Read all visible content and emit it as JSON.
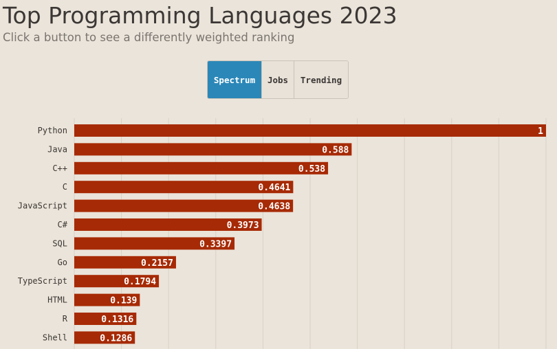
{
  "header": {
    "title": "Top Programming Languages 2023",
    "subtitle": "Click a button to see a differently weighted ranking"
  },
  "buttons": [
    {
      "label": "Spectrum",
      "active": true
    },
    {
      "label": "Jobs",
      "active": false
    },
    {
      "label": "Trending",
      "active": false
    }
  ],
  "colors": {
    "bar": "#a62a05",
    "active_button": "#2b87b8",
    "background": "#ebe4da",
    "grid": "#d9d1c6"
  },
  "chart_data": {
    "type": "bar",
    "orientation": "horizontal",
    "categories": [
      "Python",
      "Java",
      "C++",
      "C",
      "JavaScript",
      "C#",
      "SQL",
      "Go",
      "TypeScript",
      "HTML",
      "R",
      "Shell"
    ],
    "values": [
      1,
      0.588,
      0.538,
      0.4641,
      0.4638,
      0.3973,
      0.3397,
      0.2157,
      0.1794,
      0.139,
      0.1316,
      0.1286
    ],
    "value_labels": [
      "1",
      "0.588",
      "0.538",
      "0.4641",
      "0.4638",
      "0.3973",
      "0.3397",
      "0.2157",
      "0.1794",
      "0.139",
      "0.1316",
      "0.1286"
    ],
    "xlim": [
      0,
      1
    ],
    "grid": true
  }
}
